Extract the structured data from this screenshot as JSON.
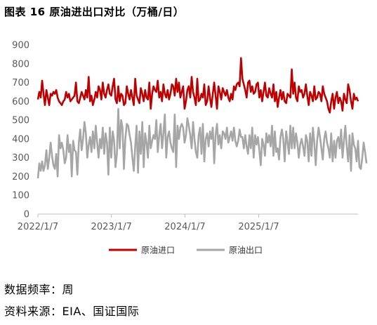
{
  "header": {
    "title": "图表 16 原油进出口对比（万桶/日）"
  },
  "notes": {
    "frequency": "数据频率：周",
    "source": "资料来源：EIA、国证国际"
  },
  "colors": {
    "import": "#C00000",
    "export": "#A6A6A6",
    "axis": "#BFBFBF"
  },
  "chart_data": {
    "type": "line",
    "title": "原油进出口对比（万桶/日）",
    "x_start": "2022-01-07",
    "x_step_days": 7,
    "x_tick_labels": [
      "2022/1/7",
      "2023/1/7",
      "2024/1/7",
      "2025/1/7"
    ],
    "ylim": [
      0,
      900
    ],
    "y_ticks": [
      0,
      100,
      200,
      300,
      400,
      500,
      600,
      700,
      800,
      900
    ],
    "grid": false,
    "legend_position": "bottom",
    "series": [
      {
        "name": "原油进口",
        "color": "#C00000",
        "values": [
          610,
          650,
          620,
          710,
          640,
          580,
          660,
          620,
          580,
          640,
          630,
          650,
          640,
          660,
          620,
          600,
          590,
          580,
          600,
          610,
          650,
          620,
          640,
          600,
          610,
          620,
          630,
          700,
          600,
          590,
          620,
          650,
          630,
          610,
          660,
          620,
          730,
          600,
          630,
          580,
          610,
          650,
          620,
          680,
          660,
          610,
          700,
          640,
          620,
          660,
          690,
          640,
          630,
          680,
          720,
          610,
          590,
          680,
          600,
          640,
          630,
          580,
          590,
          680,
          640,
          610,
          660,
          620,
          580,
          720,
          630,
          610,
          590,
          670,
          640,
          600,
          660,
          620,
          610,
          700,
          560,
          640,
          680,
          660,
          650,
          710,
          620,
          650,
          600,
          690,
          640,
          620,
          660,
          610,
          640,
          690,
          680,
          630,
          720,
          650,
          700,
          620,
          650,
          680,
          560,
          600,
          660,
          680,
          620,
          730,
          650,
          620,
          580,
          720,
          600,
          610,
          640,
          620,
          690,
          580,
          600,
          680,
          620,
          570,
          640,
          700,
          630,
          560,
          680,
          650,
          610,
          670,
          650,
          630,
          660,
          620,
          600,
          640,
          610,
          680,
          660,
          690,
          700,
          680,
          830,
          720,
          690,
          660,
          620,
          700,
          710,
          650,
          680,
          640,
          650,
          690,
          700,
          620,
          660,
          600,
          650,
          700,
          630,
          620,
          670,
          640,
          620,
          690,
          600,
          650,
          570,
          620,
          660,
          610,
          650,
          600,
          590,
          640,
          630,
          620,
          770,
          640,
          700,
          620,
          600,
          680,
          650,
          660,
          620,
          640,
          690,
          630,
          580,
          650,
          630,
          600,
          680,
          610,
          620,
          650,
          640,
          600,
          680,
          640,
          620,
          600,
          560,
          540,
          600,
          640,
          560,
          620,
          650,
          590,
          620,
          600,
          550,
          640,
          610,
          590,
          690,
          660,
          600,
          560,
          640,
          610,
          620,
          600
        ]
      },
      {
        "name": "原油出口",
        "color": "#A6A6A6",
        "values": [
          190,
          270,
          230,
          280,
          230,
          260,
          340,
          240,
          300,
          380,
          310,
          260,
          240,
          320,
          200,
          420,
          350,
          380,
          340,
          270,
          300,
          420,
          330,
          370,
          200,
          390,
          340,
          330,
          210,
          380,
          450,
          340,
          400,
          490,
          430,
          300,
          370,
          410,
          330,
          440,
          350,
          470,
          380,
          300,
          400,
          350,
          460,
          320,
          430,
          380,
          210,
          460,
          300,
          440,
          390,
          250,
          320,
          560,
          350,
          500,
          460,
          240,
          400,
          480,
          470,
          420,
          380,
          300,
          230,
          360,
          470,
          220,
          440,
          320,
          490,
          250,
          430,
          380,
          300,
          470,
          350,
          390,
          420,
          400,
          500,
          330,
          420,
          480,
          350,
          430,
          530,
          300,
          410,
          440,
          380,
          350,
          330,
          530,
          250,
          470,
          400,
          460,
          480,
          460,
          380,
          420,
          510,
          470,
          420,
          350,
          490,
          400,
          330,
          300,
          420,
          460,
          320,
          480,
          280,
          400,
          430,
          360,
          440,
          400,
          460,
          270,
          420,
          480,
          370,
          420,
          350,
          440,
          430,
          400,
          460,
          380,
          410,
          440,
          390,
          460,
          390,
          360,
          390,
          450,
          410,
          410,
          350,
          420,
          360,
          320,
          420,
          350,
          460,
          300,
          420,
          370,
          410,
          340,
          260,
          400,
          370,
          310,
          430,
          380,
          420,
          360,
          470,
          310,
          440,
          330,
          350,
          290,
          410,
          450,
          400,
          280,
          440,
          380,
          320,
          470,
          350,
          460,
          350,
          430,
          380,
          300,
          370,
          400,
          360,
          310,
          420,
          390,
          280,
          430,
          310,
          460,
          380,
          260,
          390,
          460,
          410,
          350,
          290,
          400,
          440,
          380,
          350,
          300,
          430,
          280,
          390,
          300,
          390,
          410,
          350,
          450,
          300,
          390,
          470,
          360,
          280,
          420,
          230,
          430,
          370,
          350,
          280,
          390,
          250,
          240,
          300,
          380,
          330,
          270
        ]
      }
    ]
  }
}
